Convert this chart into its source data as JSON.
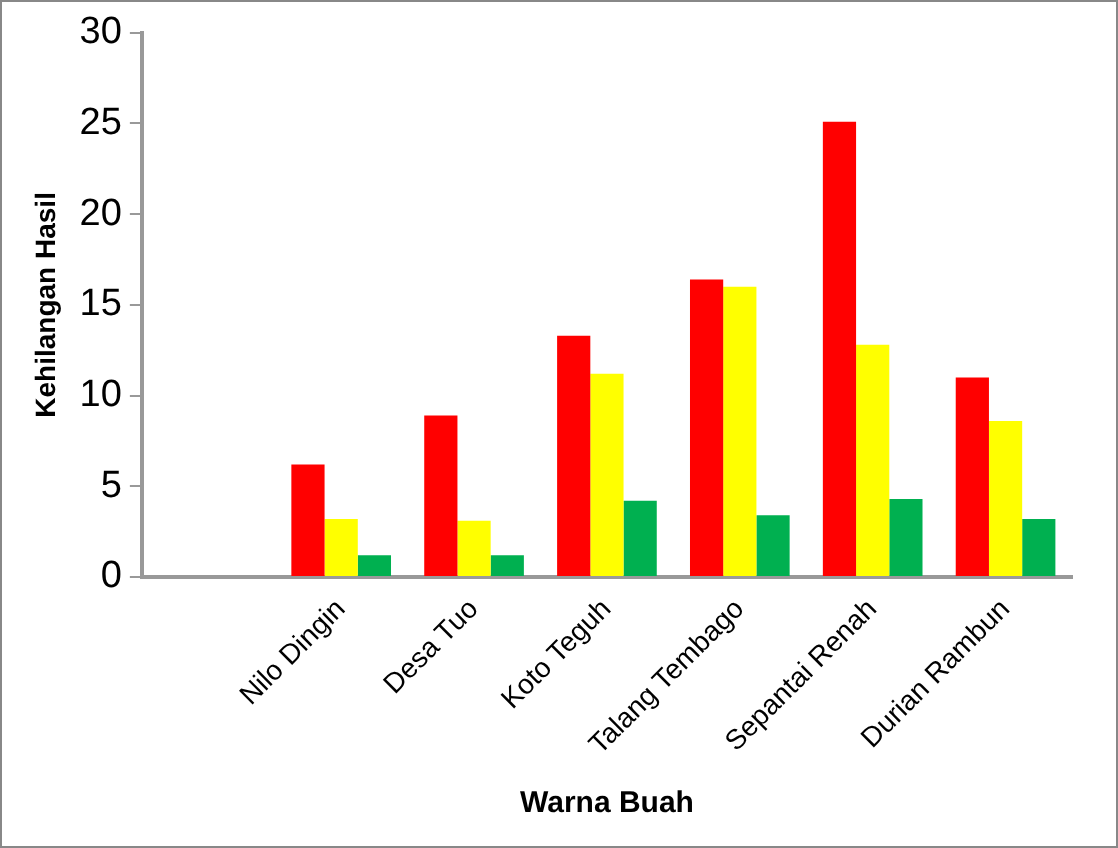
{
  "chart_data": {
    "type": "bar",
    "xlabel": "Warna Buah",
    "ylabel": "Kehilangan Hasil",
    "categories": [
      null,
      "Nilo Dingin",
      "Desa Tuo",
      "Koto Teguh",
      "Talang Tembago",
      "Sepantai Renah",
      "Durian Rambun"
    ],
    "series": [
      {
        "color": "#ff0000",
        "values": [
          null,
          6.2,
          8.9,
          13.3,
          16.4,
          25.1,
          11.0
        ]
      },
      {
        "color": "#ffff00",
        "values": [
          null,
          3.2,
          3.1,
          11.2,
          16.0,
          12.8,
          8.6
        ]
      },
      {
        "color": "#00b050",
        "values": [
          null,
          1.2,
          1.2,
          4.2,
          3.4,
          4.3,
          3.2
        ]
      }
    ],
    "ylim": [
      0,
      30
    ],
    "yticks": [
      0,
      5,
      10,
      15,
      20,
      25,
      30
    ],
    "grid": false,
    "legend": false
  }
}
